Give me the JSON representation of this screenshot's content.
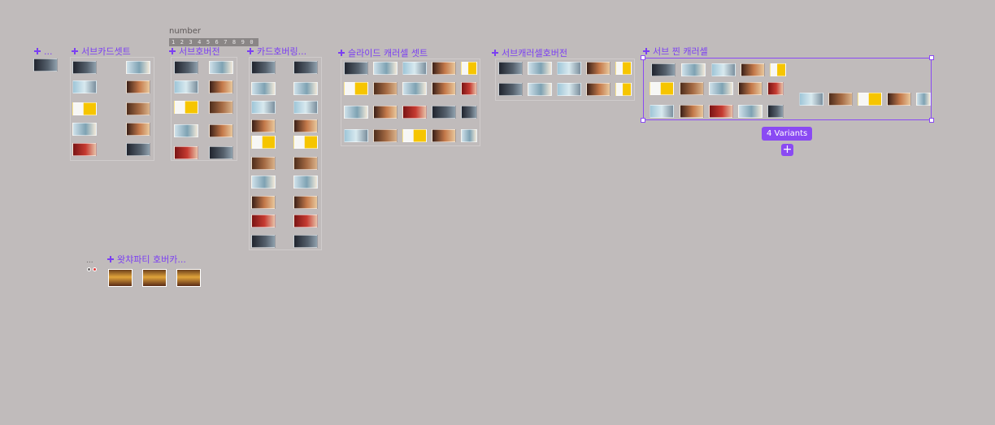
{
  "canvas": {
    "background": "#c0bbbb",
    "accent": "#8a4af3",
    "label_color": "#7b3ff2"
  },
  "frames": {
    "small_component": "...",
    "sub_card_set": "서브카드셋트",
    "sub_hover_version": "서브호버전",
    "card_hovering": "카드호버링...",
    "slide_carousel_set": "슬라이드 캐러셀 셋트",
    "sub_carousel_hover_version": "서브캐러셀호버전",
    "sub_pin_carousel": "서브 찐 캐러셀",
    "watcha_party_hover": "왓챠파티 호버카..."
  },
  "number_component": {
    "label": "number",
    "digits": [
      "1",
      "2",
      "3",
      "4",
      "5",
      "6",
      "7",
      "8",
      "9",
      "0"
    ]
  },
  "selection": {
    "variants_badge": "4 Variants",
    "add_variant_icon": "plus-icon",
    "add_variant_label": "+"
  },
  "misc": {
    "small_dots": "..."
  }
}
